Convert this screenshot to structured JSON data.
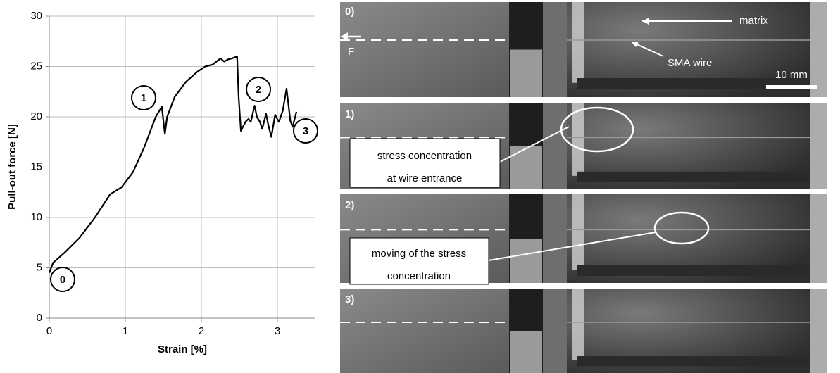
{
  "chart_data": {
    "type": "line",
    "x_label": "Strain [%]",
    "y_label": "Pull-out force [N]",
    "x": [
      0,
      0.05,
      0.2,
      0.4,
      0.6,
      0.8,
      0.95,
      1.1,
      1.25,
      1.4,
      1.48,
      1.52,
      1.55,
      1.65,
      1.8,
      1.95,
      2.05,
      2.15,
      2.25,
      2.3,
      2.35,
      2.4,
      2.47,
      2.49,
      2.52,
      2.58,
      2.62,
      2.65,
      2.7,
      2.73,
      2.77,
      2.8,
      2.85,
      2.88,
      2.92,
      2.97,
      3.02,
      3.07,
      3.12,
      3.17,
      3.2,
      3.25
    ],
    "values": [
      4.5,
      5.5,
      6.5,
      8,
      10,
      12.3,
      13,
      14.5,
      17,
      20,
      21,
      18.3,
      20,
      22,
      23.5,
      24.5,
      25,
      25.2,
      25.8,
      25.5,
      25.7,
      25.8,
      26,
      22,
      18.6,
      19.5,
      19.8,
      19.5,
      21.1,
      20,
      19.5,
      18.8,
      20.3,
      19.2,
      18,
      20.2,
      19.5,
      20.6,
      22.8,
      19.6,
      19,
      20.5
    ],
    "color": "#000000",
    "xlim": [
      0,
      3.5
    ],
    "xticks": [
      0,
      1,
      2,
      3
    ],
    "ylim": [
      0,
      30
    ],
    "yticks": [
      0,
      5,
      10,
      15,
      20,
      25,
      30
    ],
    "grid": true,
    "annotations": [
      "0",
      "1",
      "2",
      "3"
    ]
  },
  "panels": [
    {
      "label": "0)",
      "matrix": "matrix",
      "wire": "SMA wire",
      "scale": "10 mm",
      "force": "F"
    },
    {
      "label": "1)",
      "callout": [
        "stress concentration",
        "at wire entrance"
      ]
    },
    {
      "label": "2)",
      "callout": [
        "moving of the stress",
        "concentration"
      ]
    },
    {
      "label": "3)"
    }
  ]
}
